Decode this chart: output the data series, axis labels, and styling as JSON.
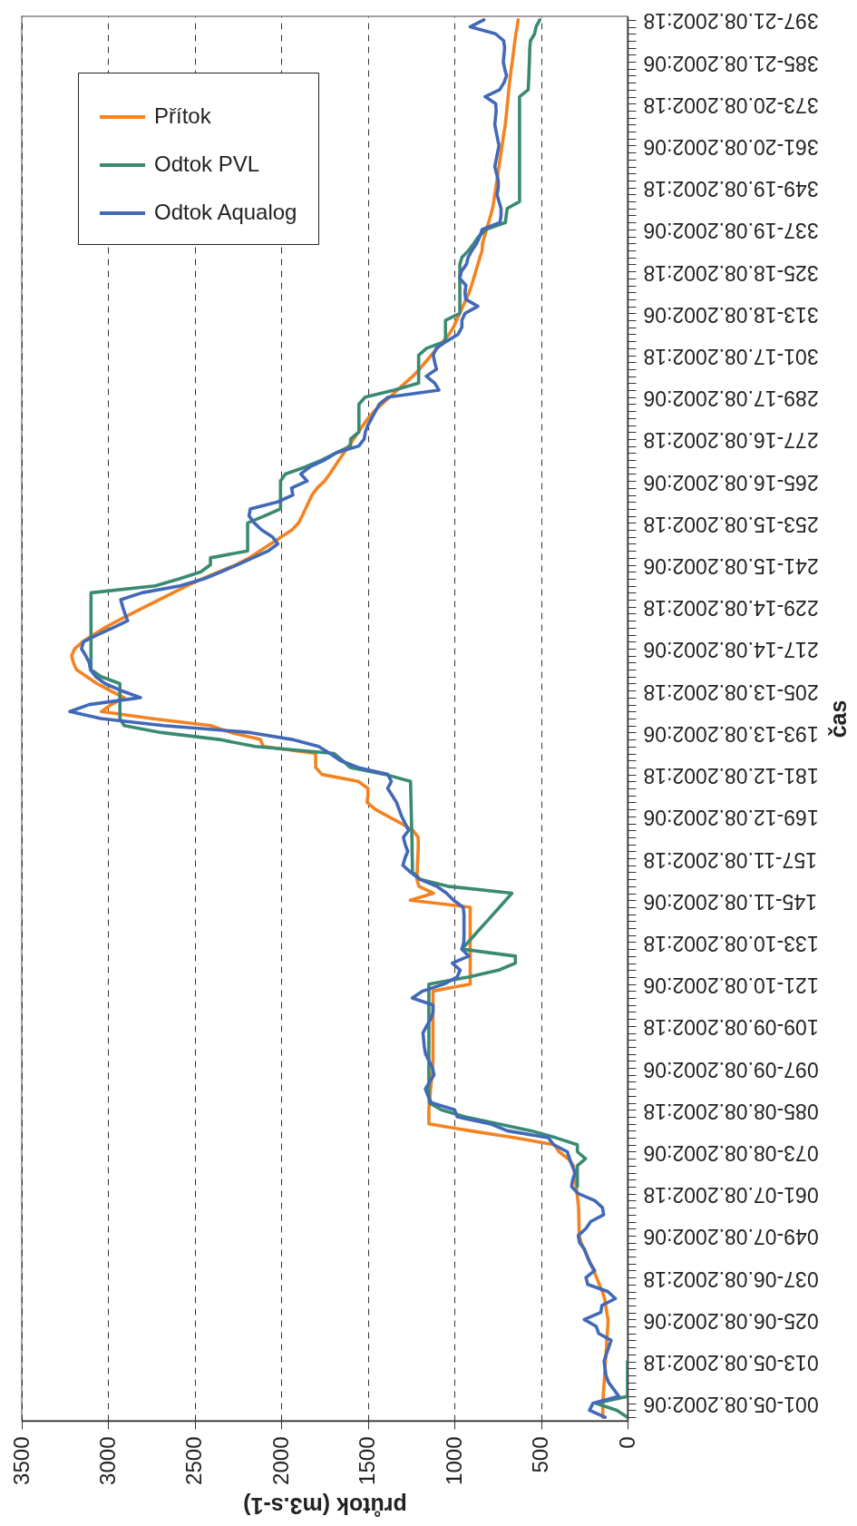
{
  "chart_data": {
    "type": "line",
    "orientation": "horizontal",
    "xlabel": "průtok (m3.s-1)",
    "ylabel": "čas",
    "xlim": [
      3500,
      0
    ],
    "xticks": [
      3500,
      3000,
      2500,
      2000,
      1500,
      1000,
      500,
      0
    ],
    "categories": [
      "397-21.08.2002:18",
      null,
      null,
      null,
      null,
      null,
      "385-21.08.2002:06",
      null,
      null,
      null,
      null,
      null,
      "373-20.08.2002:18",
      null,
      null,
      null,
      null,
      null,
      "361-20.08.2002:06",
      null,
      null,
      null,
      null,
      null,
      "349-19.08.2002:18",
      null,
      null,
      null,
      null,
      null,
      "337-19.08.2002:06",
      null,
      null,
      null,
      null,
      null,
      "325-18.08.2002:18",
      null,
      null,
      null,
      null,
      null,
      "313-18.08.2002:06",
      null,
      null,
      null,
      null,
      null,
      "301-17.08.2002:18",
      null,
      null,
      null,
      null,
      null,
      "289-17.08.2002:06",
      null,
      null,
      null,
      null,
      null,
      "277-16.08.2002:18",
      null,
      null,
      null,
      null,
      null,
      "265-16.08.2002:06",
      null,
      null,
      null,
      null,
      null,
      "253-15.08.2002:18",
      null,
      null,
      null,
      null,
      null,
      "241-15.08.2002:06",
      null,
      null,
      null,
      null,
      null,
      "229-14.08.2002:18",
      null,
      null,
      null,
      null,
      null,
      "217-14.08.2002:06",
      null,
      null,
      null,
      null,
      null,
      "205-13.08.2002:18",
      null,
      null,
      null,
      null,
      null,
      "193-13.08.2002:06",
      null,
      null,
      null,
      null,
      null,
      "181-12.08.2002:18",
      null,
      null,
      null,
      null,
      null,
      "169-12.08.2002:06",
      null,
      null,
      null,
      null,
      null,
      "157-11.08.2002:18",
      null,
      null,
      null,
      null,
      null,
      "145-11.08.2002:06",
      null,
      null,
      null,
      null,
      null,
      "133-10.08.2002:18",
      null,
      null,
      null,
      null,
      null,
      "121-10.08.2002:06",
      null,
      null,
      null,
      null,
      null,
      "109-09.08.2002:18",
      null,
      null,
      null,
      null,
      null,
      "097-09.08.2002:06",
      null,
      null,
      null,
      null,
      null,
      "085-08.08.2002:18",
      null,
      null,
      null,
      null,
      null,
      "073-08.08.2002:06",
      null,
      null,
      null,
      null,
      null,
      "061-07.08.2002:18",
      null,
      null,
      null,
      null,
      null,
      "049-07.08.2002:06",
      null,
      null,
      null,
      null,
      null,
      "037-06.08.2002:18",
      null,
      null,
      null,
      null,
      null,
      "025-06.08.2002:06",
      null,
      null,
      null,
      null,
      null,
      "013-05.08.2002:18",
      null,
      null,
      null,
      null,
      null,
      "001-05.08.2002:06",
      null,
      null
    ],
    "grid": "x",
    "legend": "top left",
    "line_style": "solid",
    "series": [
      {
        "name": "Přítok",
        "color": "#f58220",
        "values": [
          632,
          638,
          645,
          651,
          656,
          661,
          666,
          672,
          677,
          682,
          686,
          690,
          694,
          698,
          702,
          706,
          713,
          719,
          725,
          731,
          737,
          743,
          749,
          755,
          761,
          767,
          773,
          780,
          791,
          803,
          815,
          826,
          838,
          840,
          853,
          865,
          877,
          889,
          901,
          915,
          933,
          951,
          970,
          988,
          1006,
          1031,
          1065,
          1099,
          1134,
          1168,
          1202,
          1241,
          1286,
          1330,
          1374,
          1419,
          1463,
          1498,
          1527,
          1555,
          1583,
          1611,
          1639,
          1667,
          1694,
          1721,
          1750,
          1793,
          1823,
          1842,
          1861,
          1880,
          1900,
          1938,
          2000,
          2062,
          2124,
          2185,
          2263,
          2360,
          2457,
          2545,
          2626,
          2707,
          2788,
          2867,
          2945,
          3020,
          3084,
          3148,
          3194,
          3212,
          3202,
          3184,
          3125,
          3065,
          2990,
          2910,
          2983,
          3040,
          2750,
          2410,
          2292,
          2122,
          2104,
          1802,
          1802,
          1802,
          1766,
          1556,
          1500,
          1500,
          1505,
          1457,
          1383,
          1309,
          1240,
          1210,
          1209,
          1210,
          1212,
          1214,
          1215,
          1217,
          1206,
          1121,
          1255,
          909,
          909,
          909,
          909,
          909,
          909,
          909,
          909,
          909,
          909,
          909,
          909,
          1124,
          1124,
          1124,
          1124,
          1124,
          1124,
          1124,
          1124,
          1124,
          1124,
          1124,
          1127,
          1131,
          1134,
          1138,
          1141,
          1145,
          1148,
          1148,
          1148,
          909,
          653,
          423,
          396,
          343,
          312,
          307,
          302,
          297,
          292,
          287,
          283,
          282,
          281,
          280,
          279,
          268,
          250,
          232,
          213,
          196,
          179,
          163,
          146,
          133,
          126,
          120,
          113,
          114,
          117,
          120,
          122,
          125,
          128,
          130,
          133,
          135,
          138,
          141,
          143,
          143,
          143
        ]
      },
      {
        "name": "Odtok PVL",
        "color": "#3a8a73",
        "values": [
          507,
          529,
          537,
          561,
          565,
          566,
          567,
          569,
          570,
          572,
          574,
          624,
          624,
          624,
          624,
          624,
          624,
          624,
          624,
          624,
          624,
          624,
          624,
          624,
          624,
          624,
          624,
          695,
          701,
          706,
          816,
          860,
          888,
          918,
          957,
          969,
          969,
          969,
          969,
          969,
          969,
          969,
          969,
          1052,
          1052,
          1052,
          1052,
          1161,
          1207,
          1207,
          1207,
          1207,
          1207,
          1349,
          1516,
          1552,
          1552,
          1552,
          1552,
          1552,
          1600,
          1600,
          1686,
          1767,
          1862,
          1977,
          2005,
          2005,
          2005,
          2005,
          2005,
          2097,
          2195,
          2195,
          2195,
          2195,
          2195,
          2410,
          2410,
          2465,
          2590,
          2729,
          3100,
          3100,
          3100,
          3100,
          3100,
          3100,
          3100,
          3100,
          3100,
          3100,
          3100,
          3100,
          3043,
          2933,
          2933,
          2933,
          2933,
          2933,
          2933,
          2909,
          2695,
          2358,
          2152,
          1695,
          1648,
          1602,
          1399,
          1254,
          1253,
          1252,
          1251,
          1250,
          1249,
          1248,
          1247,
          1246,
          1245,
          1245,
          1244,
          1243,
          1243,
          1198,
          1040,
          668,
          704,
          740,
          776,
          812,
          849,
          885,
          921,
          957,
          648,
          648,
          744,
          921,
          1148,
          1148,
          1148,
          1148,
          1148,
          1148,
          1148,
          1148,
          1148,
          1148,
          1148,
          1148,
          1148,
          1148,
          1148,
          1148,
          1148,
          1145,
          1076,
          938,
          747,
          556,
          414,
          290,
          290,
          243,
          290,
          290,
          290,
          290,
          null,
          null,
          null,
          null,
          null,
          null,
          null,
          null,
          null,
          null,
          null,
          null,
          null,
          null,
          null,
          null,
          null,
          null,
          null,
          null,
          null,
          null,
          null,
          null,
          0,
          0,
          0,
          0,
          0,
          0,
          183,
          62,
          0
        ]
      },
      {
        "name": "Odtok Aqualog",
        "color": "#4169b8",
        "values": [
          830,
          910,
          763,
          716,
          710,
          714,
          718,
          710,
          699,
          714,
          739,
          823,
          762,
          759,
          763,
          767,
          759,
          751,
          743,
          751,
          759,
          767,
          757,
          747,
          747,
          754,
          743,
          731,
          731,
          737,
          840,
          853,
          872,
          899,
          921,
          931,
          960,
          969,
          934,
          939,
          935,
          865,
          939,
          957,
          957,
          979,
          1045,
          1105,
          1123,
          1114,
          1104,
          1163,
          1114,
          1090,
          1383,
          1434,
          1456,
          1478,
          1500,
          1515,
          1522,
          1553,
          1685,
          1751,
          1836,
          1888,
          1851,
          1941,
          1934,
          2022,
          2180,
          2187,
          2157,
          2115,
          2052,
          2021,
          2075,
          2165,
          2255,
          2348,
          2447,
          2586,
          2806,
          2928,
          2917,
          2904,
          2888,
          2972,
          3062,
          3143,
          3155,
          3130,
          3110,
          3103,
          3073,
          3019,
          2926,
          2814,
          3111,
          3222,
          3043,
          2683,
          2180,
          1938,
          1785,
          1719,
          1660,
          1557,
          1385,
          1365,
          1386,
          1360,
          1335,
          1320,
          1305,
          1285,
          1265,
          1295,
          1285,
          1270,
          1286,
          1298,
          1254,
          1201,
          1103,
          1046,
          1005,
          950,
          945,
          945,
          945,
          945,
          946,
          957,
          918,
          1012,
          967,
          985,
          1060,
          1183,
          1244,
          1124,
          1124,
          1137,
          1161,
          1182,
          1178,
          1174,
          1167,
          1147,
          1127,
          1118,
          1143,
          1168,
          1153,
          1133,
          1000,
          984,
          794,
          695,
          458,
          426,
          348,
          335,
          320,
          303,
          317,
          323,
          284,
          189,
          145,
          138,
          213,
          241,
          285,
          277,
          248,
          233,
          216,
          190,
          240,
          230,
          115,
          70,
          148,
          155,
          250,
          181,
          167,
          95,
          109,
          123,
          136,
          130,
          125,
          110,
          80,
          50,
          200,
          220,
          130
        ]
      }
    ]
  }
}
